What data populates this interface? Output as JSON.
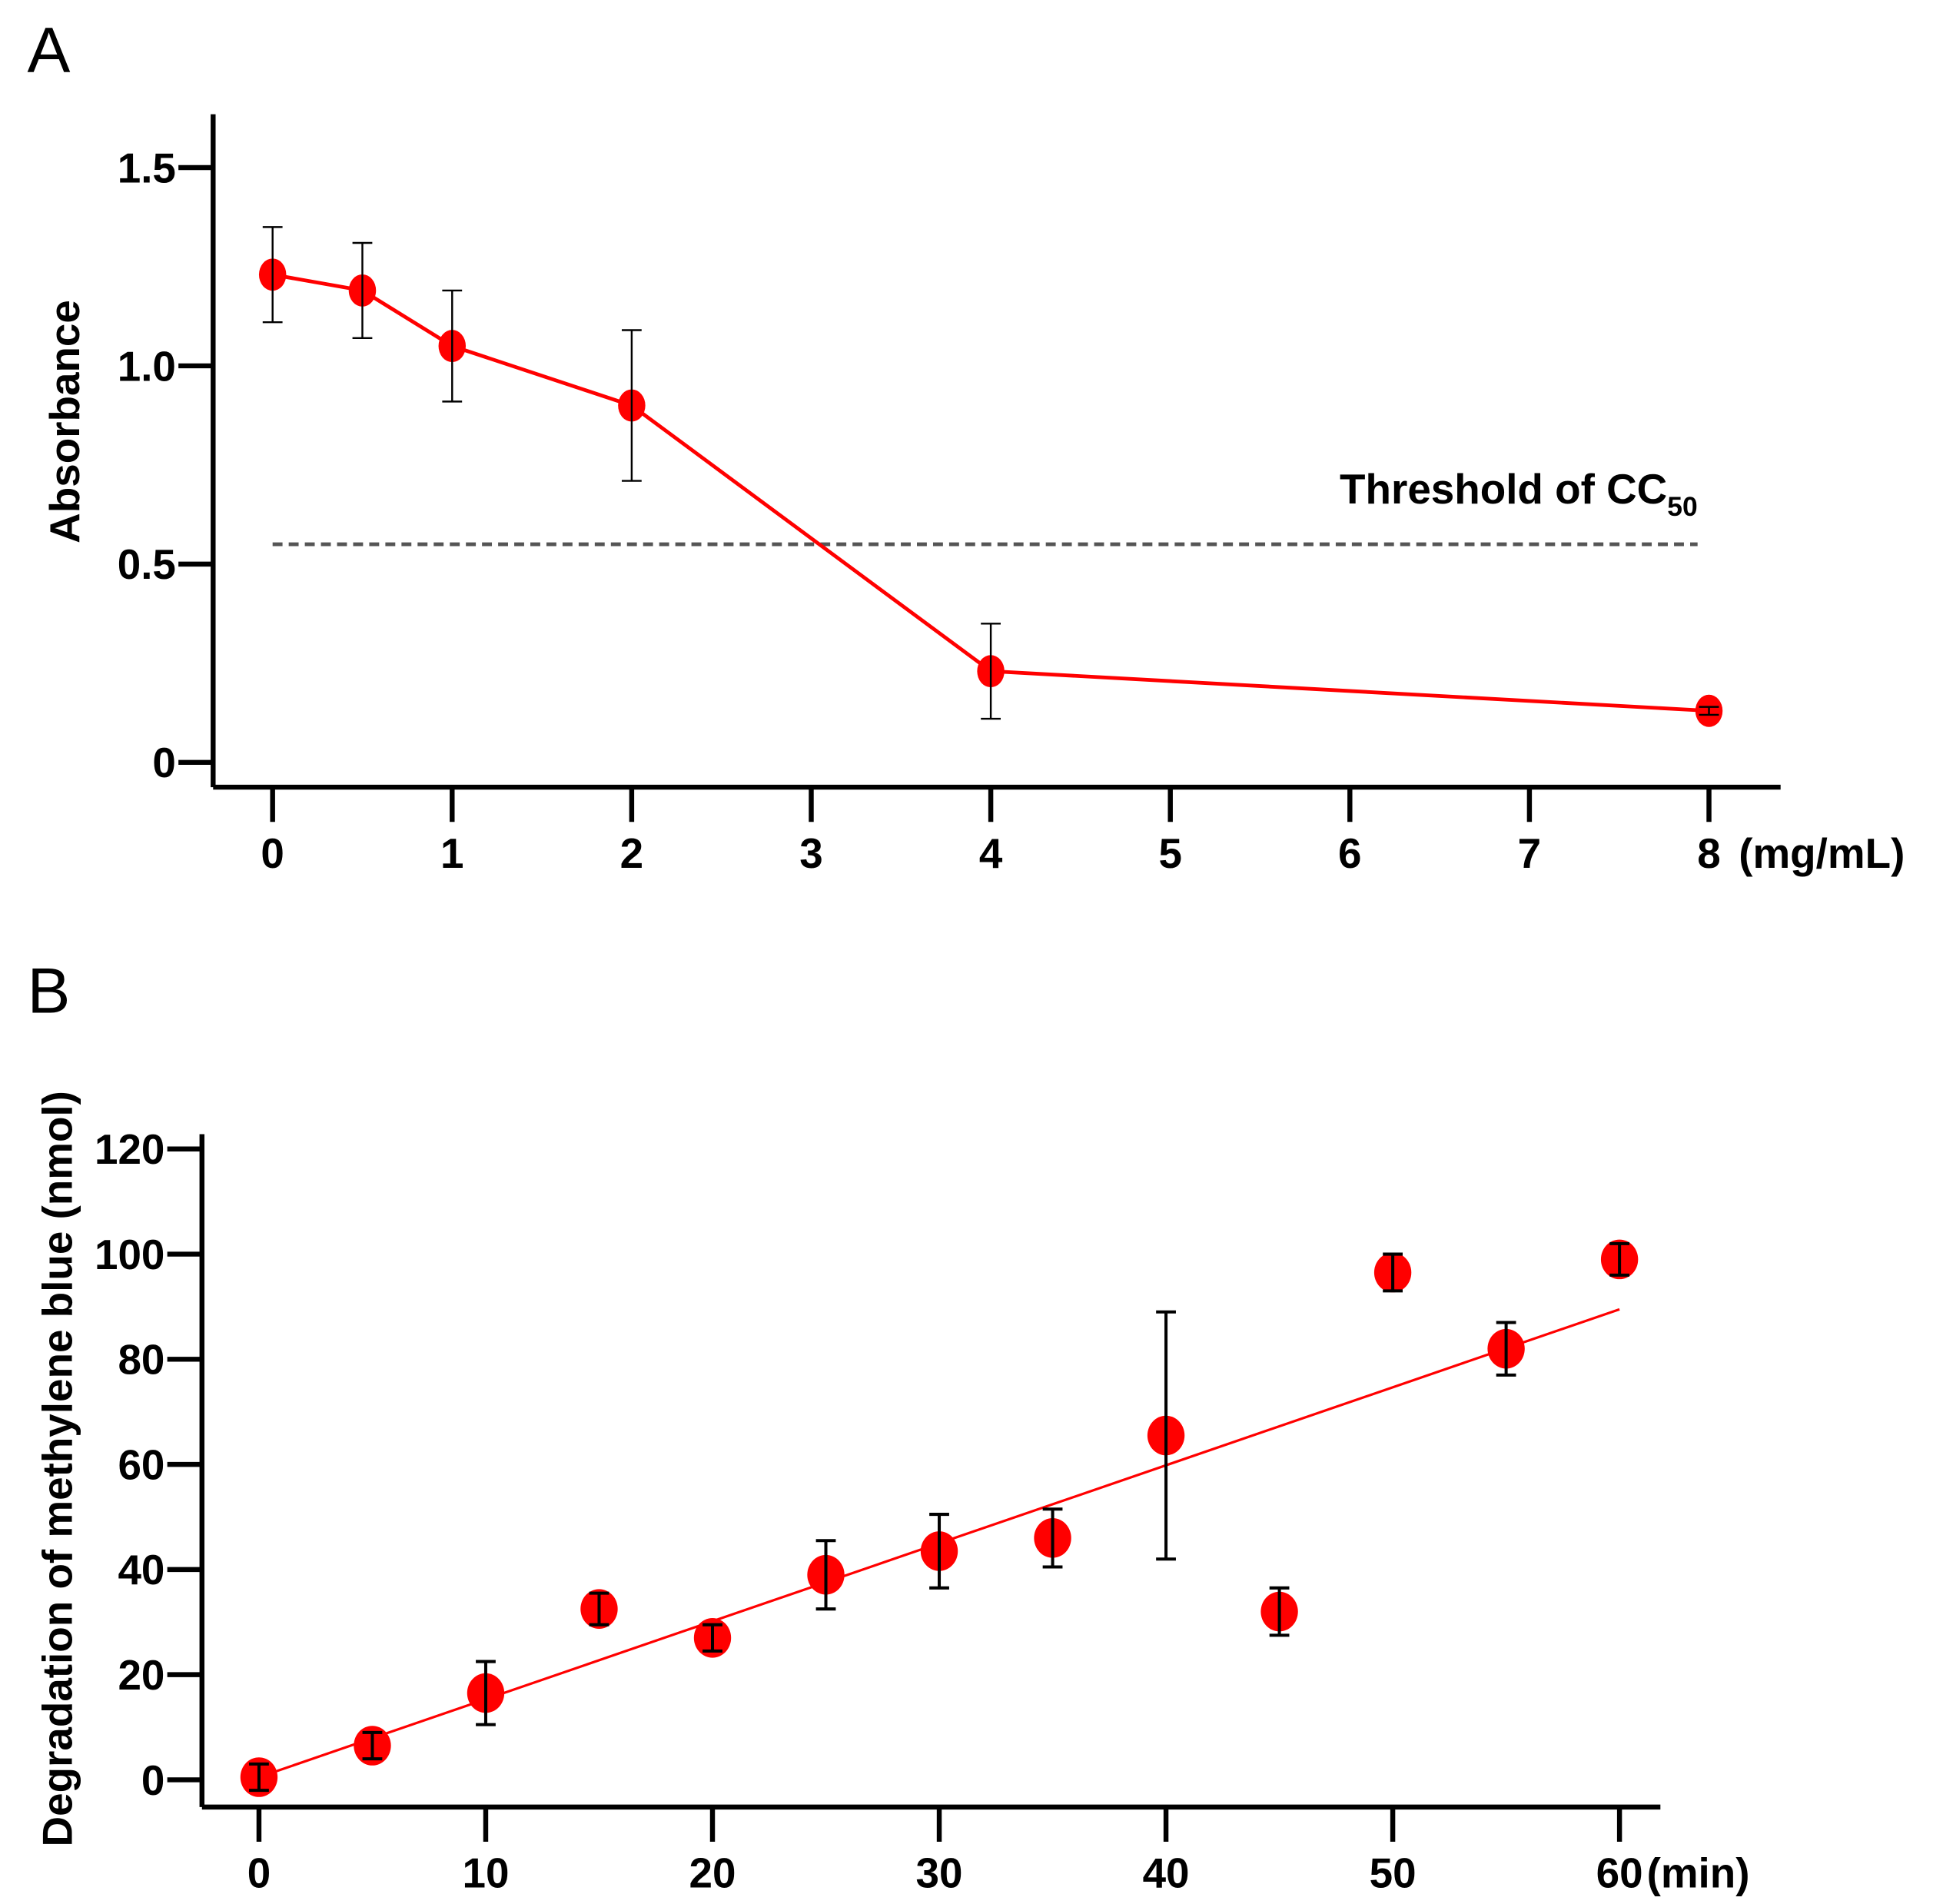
{
  "chart_data": [
    {
      "panel": "A",
      "type": "line",
      "xlabel": "(mg/mL)",
      "ylabel": "Absorbance",
      "xlim": [
        0,
        8.4
      ],
      "ylim": [
        -0.06,
        1.63
      ],
      "x_ticks": [
        0,
        1,
        2,
        3,
        4,
        5,
        6,
        7,
        8
      ],
      "x_tick_labels": [
        "0",
        "1",
        "2",
        "3",
        "4",
        "5",
        "6",
        "7",
        "8"
      ],
      "y_ticks": [
        0,
        0.5,
        1.0,
        1.5
      ],
      "y_tick_labels": [
        "0",
        "0.5",
        "1.0",
        "1.5"
      ],
      "series": [
        {
          "name": "Absorbance",
          "color": "#ff0000",
          "x": [
            0,
            0.5,
            1,
            2,
            4,
            8
          ],
          "y": [
            1.23,
            1.19,
            1.05,
            0.9,
            0.23,
            0.13
          ],
          "error": [
            0.12,
            0.12,
            0.14,
            0.19,
            0.12,
            0.01
          ]
        }
      ],
      "threshold": {
        "value": 0.55,
        "label": "Threshold of CC",
        "label_sub": "50",
        "color": "#555555"
      }
    },
    {
      "panel": "B",
      "type": "scatter",
      "xlabel": "(min)",
      "ylabel": "Degradation of methylene blue (nmol)",
      "xlim": [
        -2.5,
        62.5
      ],
      "ylim": [
        -5,
        128
      ],
      "x_ticks": [
        0,
        10,
        20,
        30,
        40,
        50,
        60
      ],
      "x_tick_labels": [
        "0",
        "10",
        "20",
        "30",
        "40",
        "50",
        "60"
      ],
      "y_ticks": [
        0,
        20,
        40,
        60,
        80,
        100,
        120
      ],
      "y_tick_labels": [
        "0",
        "20",
        "40",
        "60",
        "80",
        "100",
        "120"
      ],
      "series": [
        {
          "name": "Degradation",
          "color": "#ff0000",
          "x": [
            0,
            5,
            10,
            15,
            20,
            25,
            30,
            35,
            40,
            45,
            50,
            55,
            60
          ],
          "y": [
            0.5,
            6.5,
            16.5,
            32.5,
            27,
            39,
            43.5,
            46,
            65.5,
            32,
            96.5,
            82,
            99
          ],
          "error": [
            2.5,
            2.5,
            6,
            3,
            2.5,
            6.5,
            7,
            5.5,
            23.5,
            4.5,
            3.5,
            5,
            3
          ]
        }
      ],
      "fit_line": {
        "x": [
          0,
          60
        ],
        "y": [
          0.5,
          89.5
        ],
        "color": "#ff0000"
      }
    }
  ]
}
